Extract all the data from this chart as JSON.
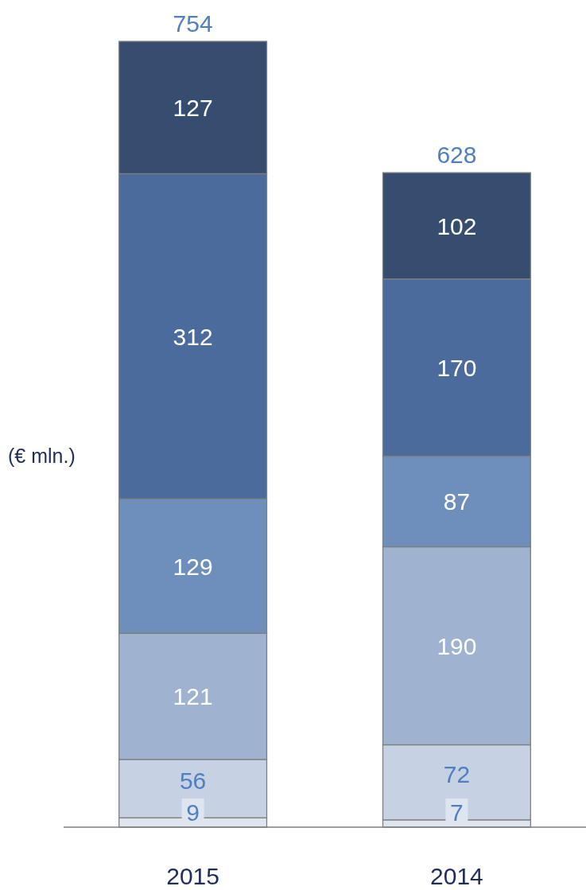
{
  "chart_data": {
    "type": "bar",
    "stacked": true,
    "ylabel": "(€ mln.)",
    "categories": [
      "2015",
      "2014"
    ],
    "series": [
      {
        "color": "#dfe5ef",
        "values": [
          9,
          7
        ]
      },
      {
        "color": "#c6d1e3",
        "values": [
          56,
          72
        ]
      },
      {
        "color": "#9fb2cf",
        "values": [
          121,
          190
        ]
      },
      {
        "color": "#6e8fbb",
        "values": [
          129,
          87
        ]
      },
      {
        "color": "#4a6b9b",
        "values": [
          312,
          170
        ]
      },
      {
        "color": "#364d6f",
        "values": [
          127,
          102
        ]
      }
    ],
    "data_labels": true,
    "totals": [
      "754",
      "628"
    ]
  }
}
